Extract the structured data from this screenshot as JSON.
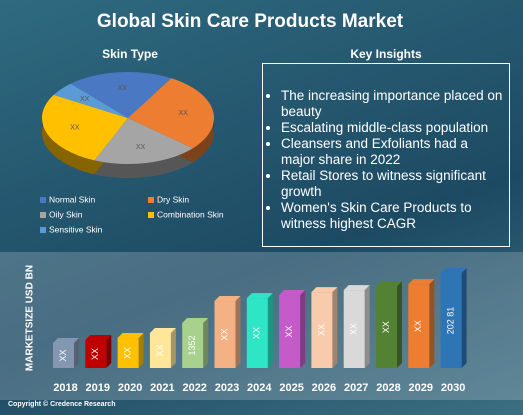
{
  "title": "Global Skin Care Products Market",
  "chart_data": [
    {
      "type": "pie",
      "title": "Skin Type",
      "categories": [
        "Normal Skin",
        "Dry Skin",
        "Oily Skin",
        "Combination Skin",
        "Sensitive Skin"
      ],
      "values": [
        20,
        28,
        20,
        27,
        5
      ],
      "value_labels": [
        "XX",
        "XX",
        "XX",
        "XX",
        "XX"
      ],
      "colors": [
        "#4a78c2",
        "#ed7d31",
        "#a5a5a5",
        "#ffc000",
        "#5b9bd5"
      ]
    },
    {
      "type": "bar",
      "ylabel": "MARKETSIZE USD BN",
      "categories": [
        "2018",
        "2019",
        "2020",
        "2021",
        "2022",
        "2023",
        "2024",
        "2025",
        "2026",
        "2027",
        "2028",
        "2029",
        "2030"
      ],
      "values": [
        1082,
        1122,
        1149,
        1217,
        1352,
        1649,
        1689,
        1730,
        1770,
        1797,
        1851,
        1878,
        2028.1
      ],
      "value_labels": [
        "XX",
        "XX",
        "XX",
        "XX",
        "1352",
        "XX",
        "XX",
        "XX",
        "XX",
        "XX",
        "XX",
        "XX",
        "202 81"
      ],
      "colors": [
        "#8497b0",
        "#c00000",
        "#ffc000",
        "#ffe699",
        "#a9d18e",
        "#f4b183",
        "#2ee6c5",
        "#c55ac9",
        "#f8cbad",
        "#d9d9d9",
        "#548235",
        "#ed7d31",
        "#2e75b6"
      ]
    }
  ],
  "key_insights": {
    "title": "Key Insights",
    "items": [
      "The increasing importance placed on beauty",
      "Escalating middle-class population",
      "Cleansers and Exfoliants had a major share in 2022",
      "Retail Stores to witness significant growth",
      "Women's Skin Care Products to witness highest CAGR"
    ]
  },
  "copyright": "Copyright © Credence Research"
}
